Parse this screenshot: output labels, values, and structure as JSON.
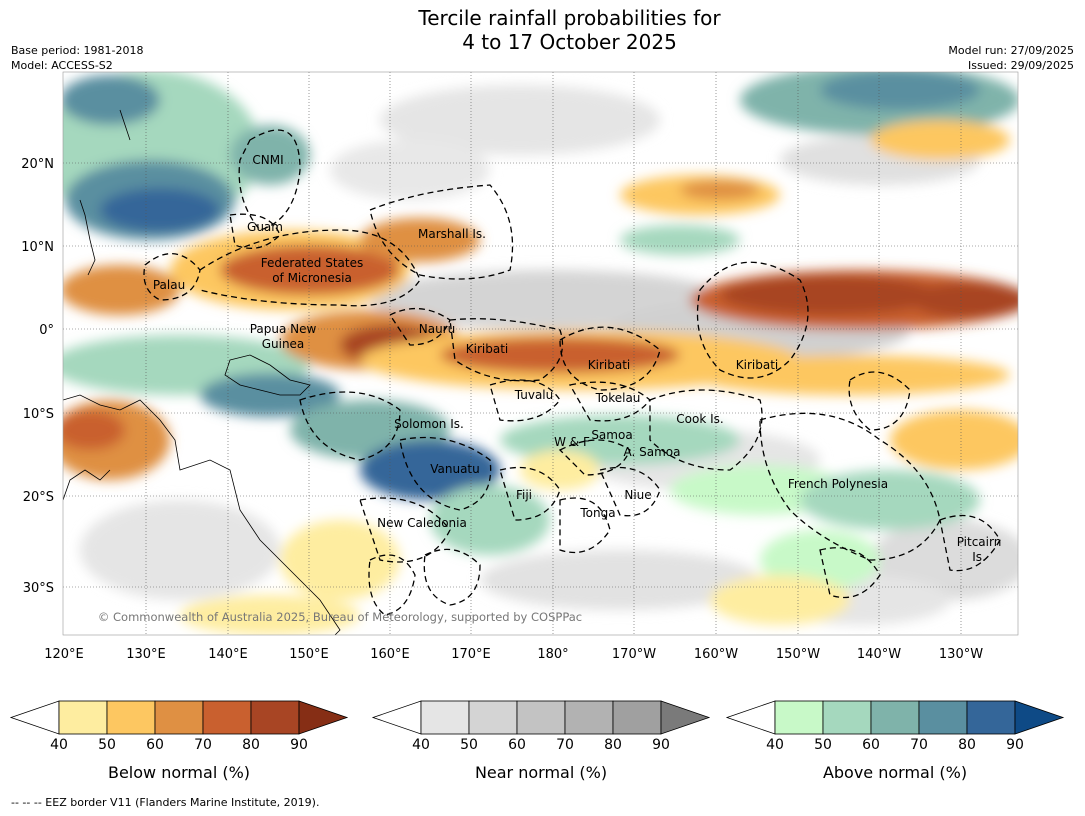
{
  "title_line1": "Tercile rainfall probabilities for",
  "title_line2": "4 to 17 October 2025",
  "base_period": "Base period: 1981-2018",
  "model": "Model: ACCESS-S2",
  "model_run": "Model run: 27/09/2025",
  "issued": "Issued: 29/09/2025",
  "credit": "© Commonwealth of Australia 2025, Bureau of Meteorology, supported by COSPPac",
  "footer": "--  --  -- EEZ border V11 (Flanders Marine Institute, 2019).",
  "lat_ticks": [
    "20°N",
    "10°N",
    "0°",
    "10°S",
    "20°S",
    "30°S"
  ],
  "lon_ticks": [
    "120°E",
    "130°E",
    "140°E",
    "150°E",
    "160°E",
    "170°E",
    "180°",
    "170°W",
    "160°W",
    "150°W",
    "140°W",
    "130°W"
  ],
  "places": [
    {
      "name": "CNMI"
    },
    {
      "name": "Guam"
    },
    {
      "name": "Marshall Is."
    },
    {
      "name": "Federated States"
    },
    {
      "name": "of Micronesia"
    },
    {
      "name": "Palau"
    },
    {
      "name": "Nauru"
    },
    {
      "name": "Papua New"
    },
    {
      "name": "Guinea"
    },
    {
      "name": "Kiribati"
    },
    {
      "name": "Kiribati"
    },
    {
      "name": "Kiribati"
    },
    {
      "name": "Tuvalu"
    },
    {
      "name": "Tokelau"
    },
    {
      "name": "Cook Is."
    },
    {
      "name": "Solomon Is."
    },
    {
      "name": "W & F"
    },
    {
      "name": "Samoa"
    },
    {
      "name": "A. Samoa"
    },
    {
      "name": "Vanuatu"
    },
    {
      "name": "Fiji"
    },
    {
      "name": "Niue"
    },
    {
      "name": "Tonga"
    },
    {
      "name": "French Polynesia"
    },
    {
      "name": "New Caledonia"
    },
    {
      "name": "Pitcairn"
    },
    {
      "name": "Is."
    }
  ],
  "colorbars": [
    {
      "label": "Below normal (%)",
      "ticks": [
        "40",
        "50",
        "60",
        "70",
        "80",
        "90"
      ],
      "colors": [
        "#ffffff",
        "#feeda0",
        "#fdc761",
        "#df9043",
        "#c9602f",
        "#a84524",
        "#862e15"
      ]
    },
    {
      "label": "Near normal (%)",
      "ticks": [
        "40",
        "50",
        "60",
        "70",
        "80",
        "90"
      ],
      "colors": [
        "#ffffff",
        "#e5e5e5",
        "#d4d4d4",
        "#c3c3c3",
        "#b2b2b2",
        "#a0a0a0",
        "#7a7a7a"
      ]
    },
    {
      "label": "Above normal (%)",
      "ticks": [
        "40",
        "50",
        "60",
        "70",
        "80",
        "90"
      ],
      "colors": [
        "#ffffff",
        "#c8f9c8",
        "#a5d8be",
        "#7fb3aa",
        "#5a8fa0",
        "#346699",
        "#0e4a86"
      ]
    }
  ]
}
